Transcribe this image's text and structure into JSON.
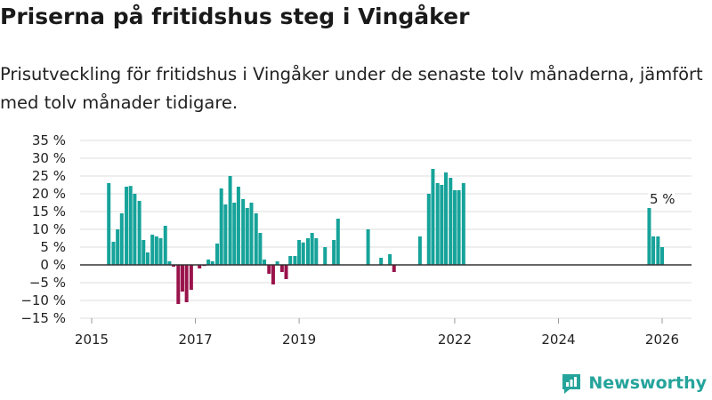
{
  "title": "Priserna på fritidshus steg i Vingåker",
  "subtitle": "Prisutveckling för fritidshus i Vingåker under de senaste tolv månaderna, jämfört med tolv månader tidigare.",
  "brand": "Newsworthy",
  "colors": {
    "positive": "#16a39a",
    "negative": "#99134b",
    "zero_line": "#333333",
    "grid": "#dcdcdc",
    "brand": "#25a49b"
  },
  "chart_data": {
    "type": "bar",
    "ylim": [
      -15,
      35
    ],
    "yticks": [
      -15,
      -10,
      -5,
      0,
      5,
      10,
      15,
      20,
      25,
      30,
      35
    ],
    "ytick_labels": [
      "−15 %",
      "−10 %",
      "−5 %",
      "0 %",
      "5 %",
      "10 %",
      "15 %",
      "20 %",
      "25 %",
      "30 %",
      "35 %"
    ],
    "xlim": [
      2015.0,
      2026.5
    ],
    "xticks": [
      2015,
      2017,
      2019,
      2022,
      2024,
      2026
    ],
    "xtick_labels": [
      "2015",
      "2017",
      "2019",
      "2022",
      "2024",
      "2026"
    ],
    "annotation": {
      "text": "5 %",
      "x": 2026.0,
      "y": 5
    },
    "series": [
      {
        "name": "Prisutveckling",
        "points": [
          [
            2015.33,
            23
          ],
          [
            2015.42,
            6.5
          ],
          [
            2015.5,
            10
          ],
          [
            2015.58,
            14.5
          ],
          [
            2015.67,
            22
          ],
          [
            2015.75,
            22.2
          ],
          [
            2015.83,
            20
          ],
          [
            2015.92,
            18
          ],
          [
            2016.0,
            7
          ],
          [
            2016.08,
            3.5
          ],
          [
            2016.17,
            8.5
          ],
          [
            2016.25,
            8
          ],
          [
            2016.33,
            7.5
          ],
          [
            2016.42,
            11
          ],
          [
            2016.5,
            1
          ],
          [
            2016.58,
            -0.5
          ],
          [
            2016.67,
            -11
          ],
          [
            2016.75,
            -7.5
          ],
          [
            2016.83,
            -10.5
          ],
          [
            2016.92,
            -7
          ],
          [
            2017.08,
            -1
          ],
          [
            2017.17,
            -0.3
          ],
          [
            2017.25,
            1.5
          ],
          [
            2017.33,
            1
          ],
          [
            2017.42,
            6
          ],
          [
            2017.5,
            21.5
          ],
          [
            2017.58,
            17
          ],
          [
            2017.67,
            25
          ],
          [
            2017.75,
            17.5
          ],
          [
            2017.83,
            22
          ],
          [
            2017.92,
            18.5
          ],
          [
            2018.0,
            16
          ],
          [
            2018.08,
            17.5
          ],
          [
            2018.17,
            14.5
          ],
          [
            2018.25,
            9
          ],
          [
            2018.33,
            1.5
          ],
          [
            2018.42,
            -2.5
          ],
          [
            2018.5,
            -5.5
          ],
          [
            2018.58,
            1
          ],
          [
            2018.67,
            -2
          ],
          [
            2018.75,
            -4
          ],
          [
            2018.83,
            2.5
          ],
          [
            2018.92,
            2.5
          ],
          [
            2019.0,
            7
          ],
          [
            2019.08,
            6.3
          ],
          [
            2019.17,
            7.5
          ],
          [
            2019.25,
            9
          ],
          [
            2019.33,
            7.5
          ],
          [
            2019.5,
            5
          ],
          [
            2019.67,
            7
          ],
          [
            2019.75,
            13
          ],
          [
            2020.33,
            10
          ],
          [
            2020.58,
            2
          ],
          [
            2020.75,
            3
          ],
          [
            2020.83,
            -2
          ],
          [
            2021.33,
            8
          ],
          [
            2021.5,
            20
          ],
          [
            2021.58,
            27
          ],
          [
            2021.67,
            23
          ],
          [
            2021.75,
            22.5
          ],
          [
            2021.83,
            26
          ],
          [
            2021.92,
            24.5
          ],
          [
            2022.0,
            21
          ],
          [
            2022.08,
            21
          ],
          [
            2022.17,
            23
          ],
          [
            2025.75,
            16
          ],
          [
            2025.83,
            8
          ],
          [
            2025.92,
            8
          ],
          [
            2026.0,
            5
          ]
        ]
      }
    ]
  }
}
